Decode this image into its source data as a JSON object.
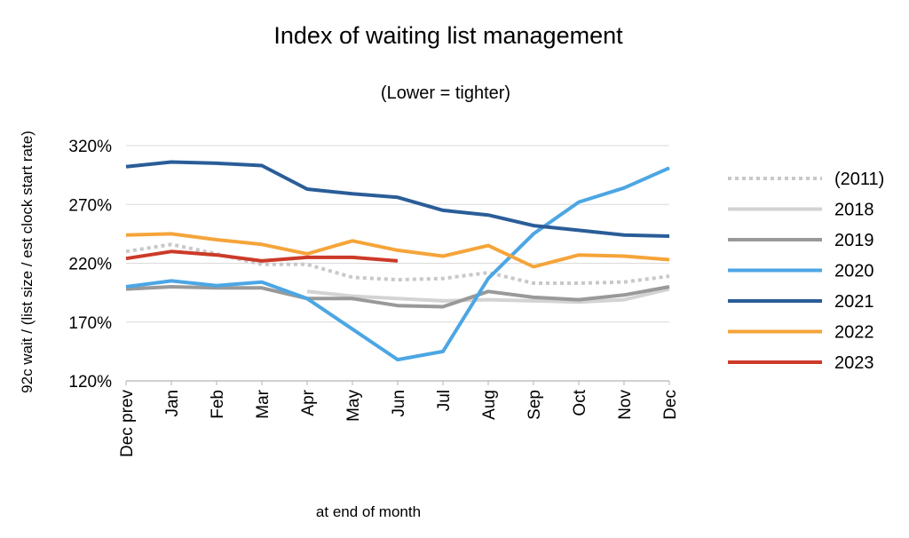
{
  "chart_data": {
    "type": "line",
    "title": "Index of waiting list management",
    "subtitle": "(Lower = tighter)",
    "xlabel": "at end of month",
    "ylabel": "92c wait / (list size / est clock start rate)",
    "categories": [
      "Dec prev",
      "Jan",
      "Feb",
      "Mar",
      "Apr",
      "May",
      "Jun",
      "Jul",
      "Aug",
      "Sep",
      "Oct",
      "Nov",
      "Dec"
    ],
    "yticks": [
      "120%",
      "170%",
      "220%",
      "270%",
      "320%"
    ],
    "ylim": [
      120,
      320
    ],
    "grid": "horizontal",
    "legend_position": "right",
    "series": [
      {
        "name": "(2011)",
        "color": "#c8c8c8",
        "dashed": true,
        "values": [
          230,
          236,
          228,
          219,
          219,
          208,
          206,
          207,
          212,
          203,
          203,
          204,
          209
        ]
      },
      {
        "name": "2018",
        "color": "#d3d3d3",
        "dashed": false,
        "values": [
          null,
          null,
          null,
          null,
          196,
          192,
          190,
          188,
          189,
          188,
          187,
          189,
          198
        ]
      },
      {
        "name": "2019",
        "color": "#999999",
        "dashed": false,
        "values": [
          198,
          200,
          199,
          199,
          190,
          190,
          184,
          183,
          196,
          191,
          189,
          193,
          200
        ]
      },
      {
        "name": "2020",
        "color": "#4ca6e4",
        "dashed": false,
        "values": [
          200,
          205,
          201,
          204,
          190,
          164,
          138,
          145,
          207,
          245,
          272,
          284,
          301
        ]
      },
      {
        "name": "2021",
        "color": "#2a5d98",
        "dashed": false,
        "values": [
          302,
          306,
          305,
          303,
          283,
          279,
          276,
          265,
          261,
          252,
          248,
          244,
          243
        ]
      },
      {
        "name": "2022",
        "color": "#f5a43a",
        "dashed": false,
        "values": [
          244,
          245,
          240,
          236,
          228,
          239,
          231,
          226,
          235,
          217,
          227,
          226,
          223
        ]
      },
      {
        "name": "2023",
        "color": "#cc3a28",
        "dashed": false,
        "values": [
          224,
          230,
          227,
          222,
          225,
          225,
          222,
          null,
          null,
          null,
          null,
          null,
          null
        ]
      }
    ]
  }
}
